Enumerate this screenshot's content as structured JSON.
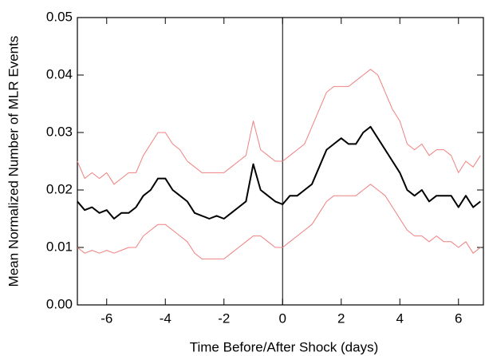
{
  "chart_data": {
    "type": "line",
    "xlabel": "Time Before/After Shock (days)",
    "ylabel": "Mean Normalized Number of MLR Events",
    "x": [
      -7,
      -6.75,
      -6.5,
      -6.25,
      -6,
      -5.75,
      -5.5,
      -5.25,
      -5,
      -4.75,
      -4.5,
      -4.25,
      -4,
      -3.75,
      -3.5,
      -3.25,
      -3,
      -2.75,
      -2.5,
      -2.25,
      -2,
      -1.75,
      -1.5,
      -1.25,
      -1,
      -0.75,
      -0.5,
      -0.25,
      0,
      0.25,
      0.5,
      0.75,
      1,
      1.25,
      1.5,
      1.75,
      2,
      2.25,
      2.5,
      2.75,
      3,
      3.25,
      3.5,
      3.75,
      4,
      4.25,
      4.5,
      4.75,
      5,
      5.25,
      5.5,
      5.75,
      6,
      6.25,
      6.5,
      6.75
    ],
    "series": [
      {
        "color": "#f08080",
        "width": 1,
        "values": [
          0.025,
          0.022,
          0.023,
          0.022,
          0.023,
          0.021,
          0.022,
          0.023,
          0.023,
          0.026,
          0.028,
          0.03,
          0.03,
          0.028,
          0.027,
          0.025,
          0.024,
          0.023,
          0.023,
          0.023,
          0.023,
          0.024,
          0.025,
          0.026,
          0.032,
          0.027,
          0.026,
          0.025,
          0.025,
          0.026,
          0.027,
          0.028,
          0.031,
          0.034,
          0.037,
          0.038,
          0.038,
          0.038,
          0.039,
          0.04,
          0.041,
          0.04,
          0.037,
          0.034,
          0.032,
          0.028,
          0.027,
          0.028,
          0.026,
          0.027,
          0.027,
          0.026,
          0.023,
          0.025,
          0.024,
          0.026
        ]
      },
      {
        "color": "#000000",
        "width": 2,
        "values": [
          0.018,
          0.0165,
          0.017,
          0.016,
          0.0165,
          0.015,
          0.016,
          0.016,
          0.017,
          0.019,
          0.02,
          0.022,
          0.022,
          0.02,
          0.019,
          0.018,
          0.016,
          0.0155,
          0.015,
          0.0155,
          0.015,
          0.016,
          0.017,
          0.018,
          0.0245,
          0.02,
          0.019,
          0.018,
          0.0175,
          0.019,
          0.019,
          0.02,
          0.021,
          0.024,
          0.027,
          0.028,
          0.029,
          0.028,
          0.028,
          0.03,
          0.031,
          0.029,
          0.027,
          0.025,
          0.023,
          0.02,
          0.019,
          0.02,
          0.018,
          0.019,
          0.019,
          0.019,
          0.017,
          0.019,
          0.017,
          0.018
        ]
      },
      {
        "color": "#f08080",
        "width": 1,
        "values": [
          0.01,
          0.009,
          0.0095,
          0.009,
          0.0095,
          0.009,
          0.0095,
          0.01,
          0.01,
          0.012,
          0.013,
          0.014,
          0.014,
          0.013,
          0.012,
          0.011,
          0.009,
          0.008,
          0.008,
          0.008,
          0.008,
          0.009,
          0.01,
          0.011,
          0.012,
          0.012,
          0.011,
          0.01,
          0.01,
          0.011,
          0.012,
          0.013,
          0.014,
          0.016,
          0.018,
          0.019,
          0.019,
          0.019,
          0.019,
          0.02,
          0.021,
          0.02,
          0.019,
          0.017,
          0.015,
          0.013,
          0.012,
          0.012,
          0.011,
          0.012,
          0.011,
          0.011,
          0.01,
          0.011,
          0.009,
          0.01
        ]
      }
    ],
    "vline_x": 0,
    "xlim": [
      -7,
      6.85
    ],
    "xticks": [
      -6,
      -4,
      -2,
      0,
      2,
      4,
      6
    ],
    "ylim": [
      0,
      0.05
    ],
    "yticks": [
      {
        "value": 0,
        "label": "0.00"
      },
      {
        "value": 0.01,
        "label": "0.01"
      },
      {
        "value": 0.02,
        "label": "0.02"
      },
      {
        "value": 0.03,
        "label": "0.03"
      },
      {
        "value": 0.04,
        "label": "0.04"
      },
      {
        "value": 0.05,
        "label": "0.05"
      }
    ]
  }
}
